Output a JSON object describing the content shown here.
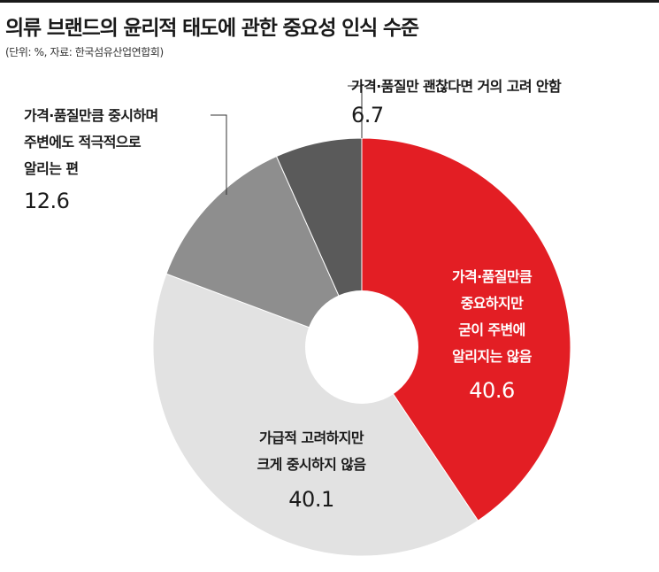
{
  "title": "의류 브랜드의 윤리적 태도에 관한 중요성 인식 수준",
  "subtitle": "(단위: %, 자료: 한국섬유산업연합회)",
  "chart_data": {
    "type": "pie",
    "donut": true,
    "categories": [
      "가격·품질만큼 중요하지만 굳이 주변에 알리지는 않음",
      "가급적 고려하지만 크게 중시하지 않음",
      "가격·품질만큼 중시하며 주변에도 적극적으로 알리는 편",
      "가격·품질만 괜찮다면 거의 고려 안함"
    ],
    "values": [
      40.6,
      40.1,
      12.6,
      6.7
    ],
    "colors": [
      "#e31e24",
      "#e2e2e2",
      "#8e8e8e",
      "#5a5a5a"
    ],
    "legend": "none"
  },
  "labels": [
    {
      "lines": [
        "가격·품질만큼",
        "중요하지만",
        "굳이 주변에",
        "알리지는 않음"
      ],
      "value": "40.6"
    },
    {
      "lines": [
        "가급적 고려하지만",
        "크게 중시하지 않음"
      ],
      "value": "40.1"
    },
    {
      "lines": [
        "가격·품질만큼 중시하며",
        "주변에도 적극적으로",
        "알리는 편"
      ],
      "value": "12.6"
    },
    {
      "lines": [
        "가격·품질만 괜찮다면 거의 고려 안함"
      ],
      "value": "6.7"
    }
  ]
}
